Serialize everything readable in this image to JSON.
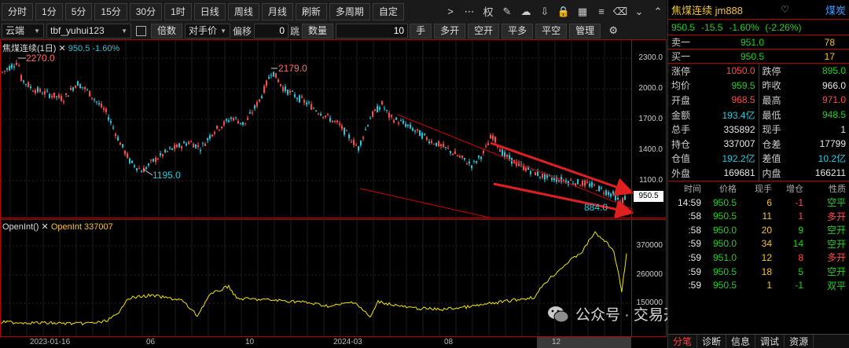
{
  "toolbar": {
    "periods": [
      "分时",
      "1分",
      "5分",
      "15分",
      "30分",
      "1时",
      "日线",
      "周线",
      "月线",
      "刷新",
      "多周期",
      "自定"
    ],
    "right_icons": [
      "chevron-right-icon",
      "ellipsis-icon",
      "rights-icon",
      "pen-icon",
      "cloud-icon",
      "cloud-download-icon",
      "lock-icon",
      "grid-icon",
      "list-icon",
      "delete-icon",
      "chevron-down-icon",
      "chevron-up-icon"
    ],
    "right_icon_glyphs": [
      ">",
      "⋯",
      "权",
      "✎",
      "☁",
      "⇩",
      "🔒",
      "▦",
      "≡",
      "⌫",
      "⌄",
      "⌃"
    ],
    "rights_label": "权"
  },
  "order_bar": {
    "broker": "云端",
    "account": "tbf_yuhui123",
    "times_label": "倍数",
    "price_type": "对手价",
    "offset_label": "偏移",
    "offset_value": "0",
    "tick_label": "跳",
    "qty_label": "数量",
    "qty_value": "10",
    "hand_label": "手",
    "buttons": [
      "多开",
      "空开",
      "平多",
      "平空",
      "管理"
    ]
  },
  "main_chart": {
    "caption_name": "焦煤连续(1日)",
    "caption_price": "950.5",
    "caption_pct": "-1.60%",
    "price_ticks": [
      "2300.0",
      "2000.0",
      "1700.0",
      "1400.0",
      "1100.0"
    ],
    "last_price_tag": "950.5",
    "annotations": {
      "high1": "2270.0",
      "high2": "2179.0",
      "low1": "1195.0",
      "low2": "884.0"
    }
  },
  "oi_chart": {
    "caption": "OpenInt()",
    "value_caption": "OpenInt 337007",
    "ticks": [
      "370000",
      "260000",
      "150000"
    ]
  },
  "date_axis": [
    "2023-01-16",
    "06",
    "10",
    "2024-03",
    "08",
    "12"
  ],
  "quote": {
    "name": "焦煤连续 jm888",
    "category": "煤炭",
    "last": "950.5",
    "change": "-15.5",
    "pct": "-1.60%",
    "pct2": "(-2.26%)",
    "ask_label": "卖一",
    "ask_price": "951.0",
    "ask_vol": "78",
    "bid_label": "买一",
    "bid_price": "950.5",
    "bid_vol": "17",
    "stats": [
      [
        {
          "k": "涨停",
          "v": "1050.0",
          "c": "red"
        },
        {
          "k": "跌停",
          "v": "895.0",
          "c": "green"
        }
      ],
      [
        {
          "k": "均价",
          "v": "959.5",
          "c": "green"
        },
        {
          "k": "昨收",
          "v": "966.0",
          "c": "white"
        }
      ],
      [
        {
          "k": "开盘",
          "v": "968.5",
          "c": "red"
        },
        {
          "k": "最高",
          "v": "971.0",
          "c": "red"
        }
      ],
      [
        {
          "k": "金额",
          "v": "193.4亿",
          "c": "cyan"
        },
        {
          "k": "最低",
          "v": "948.5",
          "c": "green"
        }
      ],
      [
        {
          "k": "总手",
          "v": "335892",
          "c": "white"
        },
        {
          "k": "现手",
          "v": "1",
          "c": "white"
        }
      ],
      [
        {
          "k": "持仓",
          "v": "337007",
          "c": "white"
        },
        {
          "k": "仓差",
          "v": "17799",
          "c": "white"
        }
      ],
      [
        {
          "k": "仓值",
          "v": "192.2亿",
          "c": "cyan"
        },
        {
          "k": "差值",
          "v": "10.2亿",
          "c": "cyan"
        }
      ],
      [
        {
          "k": "外盘",
          "v": "169681",
          "c": "white"
        },
        {
          "k": "内盘",
          "v": "166211",
          "c": "white"
        }
      ]
    ]
  },
  "ticks_table": {
    "headers": [
      "时间",
      "价格",
      "现手",
      "增仓",
      "性质"
    ],
    "rows": [
      {
        "t": "14:59",
        "p": "950.5",
        "v": "6",
        "oi": "-1",
        "n": "空平",
        "pc": "green",
        "oc": "red",
        "nc": "green"
      },
      {
        "t": ":58",
        "p": "950.5",
        "v": "11",
        "oi": "1",
        "n": "多开",
        "pc": "green",
        "oc": "red",
        "nc": "red"
      },
      {
        "t": ":58",
        "p": "950.0",
        "v": "20",
        "oi": "9",
        "n": "空开",
        "pc": "green",
        "oc": "green",
        "nc": "green"
      },
      {
        "t": ":59",
        "p": "950.0",
        "v": "34",
        "oi": "14",
        "n": "空开",
        "pc": "green",
        "oc": "green",
        "nc": "green"
      },
      {
        "t": ":59",
        "p": "951.0",
        "v": "12",
        "oi": "8",
        "n": "多开",
        "pc": "green",
        "oc": "red",
        "nc": "red"
      },
      {
        "t": ":59",
        "p": "950.5",
        "v": "18",
        "oi": "5",
        "n": "空开",
        "pc": "green",
        "oc": "green",
        "nc": "green"
      },
      {
        "t": ":59",
        "p": "950.5",
        "v": "1",
        "oi": "-1",
        "n": "双平",
        "pc": "green",
        "oc": "green",
        "nc": "green"
      }
    ]
  },
  "panel_tabs": [
    "分笔",
    "诊断",
    "信息",
    "调试",
    "资源"
  ],
  "watermark": {
    "text": "公众号 · 交易开拓者TB"
  }
}
